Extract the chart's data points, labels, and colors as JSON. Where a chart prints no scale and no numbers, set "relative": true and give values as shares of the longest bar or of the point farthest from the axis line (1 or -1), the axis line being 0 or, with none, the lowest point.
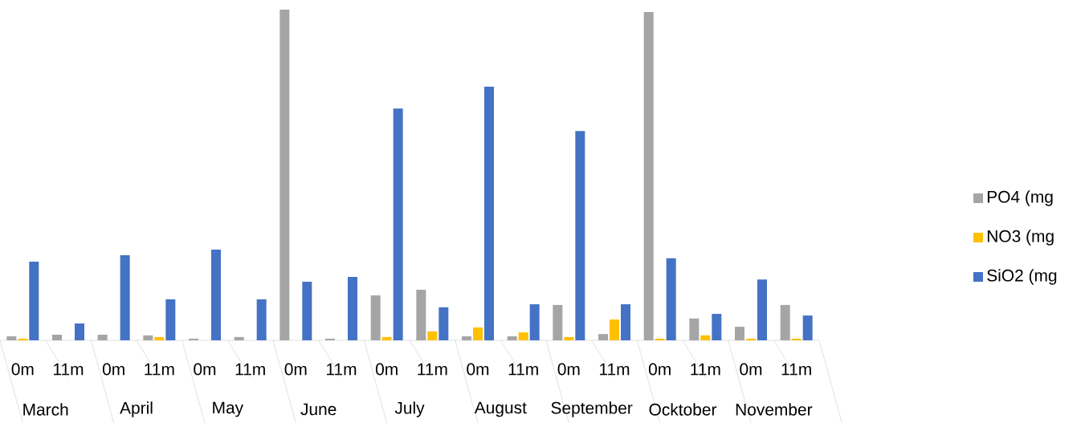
{
  "chart_data": {
    "type": "bar",
    "relative": true,
    "legend": "right",
    "categories": [
      "0m",
      "11m",
      "0m",
      "11m",
      "0m",
      "11m",
      "0m",
      "11m",
      "0m",
      "11m",
      "0m",
      "11m",
      "0m",
      "11m",
      "0m",
      "11m",
      "0m",
      "11m"
    ],
    "annotations": [
      "March",
      "April",
      "May",
      "June",
      "July",
      "August",
      "September",
      "Ocktober",
      "November"
    ],
    "series": [
      {
        "name": "PO4 (mg",
        "color": "#a5a5a5",
        "values": [
          0.012,
          0.017,
          0.017,
          0.015,
          0.005,
          0.01,
          1,
          0.005,
          0.136,
          0.153,
          0.012,
          0.012,
          0.107,
          0.019,
          0.993,
          0.066,
          0.041,
          0.107
        ]
      },
      {
        "name": "NO3 (mg",
        "color": "#ffc000",
        "values": [
          0.005,
          0,
          0,
          0.01,
          0,
          0,
          0,
          0,
          0.01,
          0.027,
          0.039,
          0.024,
          0.01,
          0.063,
          0.005,
          0.015,
          0.005,
          0.005
        ]
      },
      {
        "name": "SiO2 (mg",
        "color": "#4472c4",
        "values": [
          0.238,
          0.051,
          0.257,
          0.124,
          0.274,
          0.124,
          0.177,
          0.192,
          0.701,
          0.1,
          0.767,
          0.109,
          0.633,
          0.109,
          0.248,
          0.08,
          0.184,
          0.075
        ]
      }
    ]
  }
}
